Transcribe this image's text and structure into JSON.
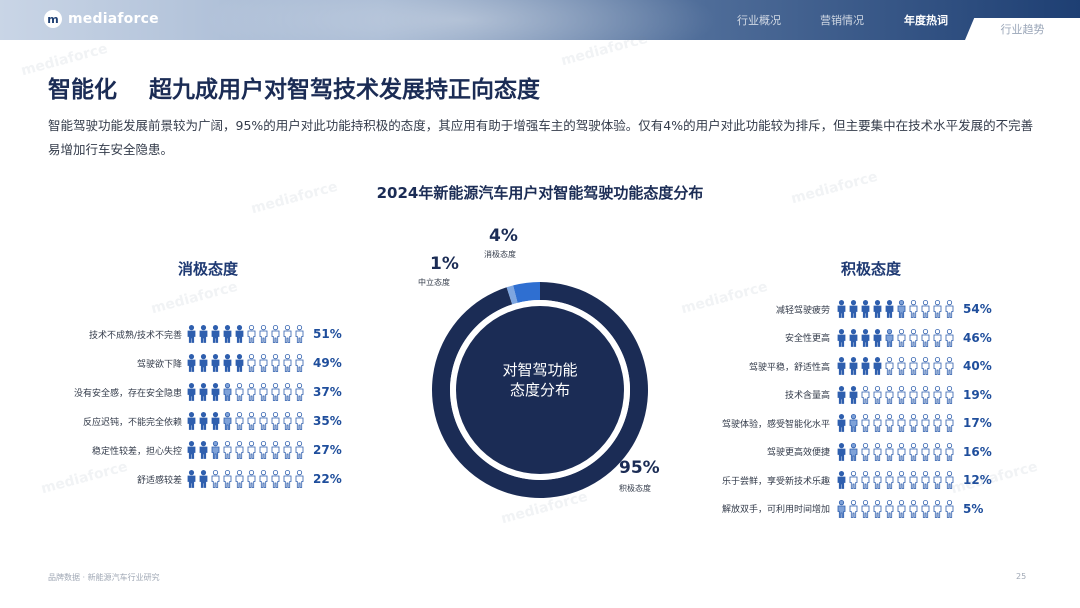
{
  "header": {
    "brand": "mediaforce",
    "logo_mark": "m",
    "nav": [
      {
        "label": "行业概况",
        "active": false
      },
      {
        "label": "营销情况",
        "active": false
      },
      {
        "label": "年度热词",
        "active": true
      },
      {
        "label": "行业趋势",
        "active": false
      }
    ]
  },
  "page_title": "智能化    超九成用户对智驾技术发展持正向态度",
  "intro": "智能驾驶功能发展前景较为广阔，95%的用户对此功能持积极的态度，其应用有助于增强车主的驾驶体验。仅有4%的用户对此功能较为排斥，但主要集中在技术水平发展的不完善易增加行车安全隐患。",
  "footer": {
    "left": "品牌数据 · 新能源汽车行业研究",
    "page": "25"
  },
  "watermark": "mediaforce",
  "colors": {
    "dark": "#1b2c55",
    "accent": "#2f6fd1",
    "light": "#c8d8f0"
  },
  "chart_data": [
    {
      "type": "pie",
      "title": "2024年新能源汽车用户对智能驾驶功能态度分布",
      "center_label": [
        "对智驾功能",
        "态度分布"
      ],
      "slices": [
        {
          "label": "积极态度",
          "value": 95
        },
        {
          "label": "消极态度",
          "value": 4
        },
        {
          "label": "中立态度",
          "value": 1
        }
      ]
    },
    {
      "type": "bar",
      "title": "消极态度",
      "categories": [
        "技术不成熟/技术不完善",
        "驾驶欲下降",
        "没有安全感，存在安全隐患",
        "反应迟钝，不能完全依赖",
        "稳定性较差，担心失控",
        "舒适感较差"
      ],
      "values": [
        51,
        49,
        37,
        35,
        27,
        22
      ],
      "unit": "%"
    },
    {
      "type": "bar",
      "title": "积极态度",
      "categories": [
        "减轻驾驶疲劳",
        "安全性更高",
        "驾驶平稳，舒适性高",
        "技术含量高",
        "驾驶体验，感受智能化水平",
        "驾驶更高效便捷",
        "乐于尝鲜，享受新技术乐趣",
        "解放双手，可利用时间增加"
      ],
      "values": [
        54,
        46,
        40,
        19,
        17,
        16,
        12,
        5
      ],
      "unit": "%"
    }
  ]
}
